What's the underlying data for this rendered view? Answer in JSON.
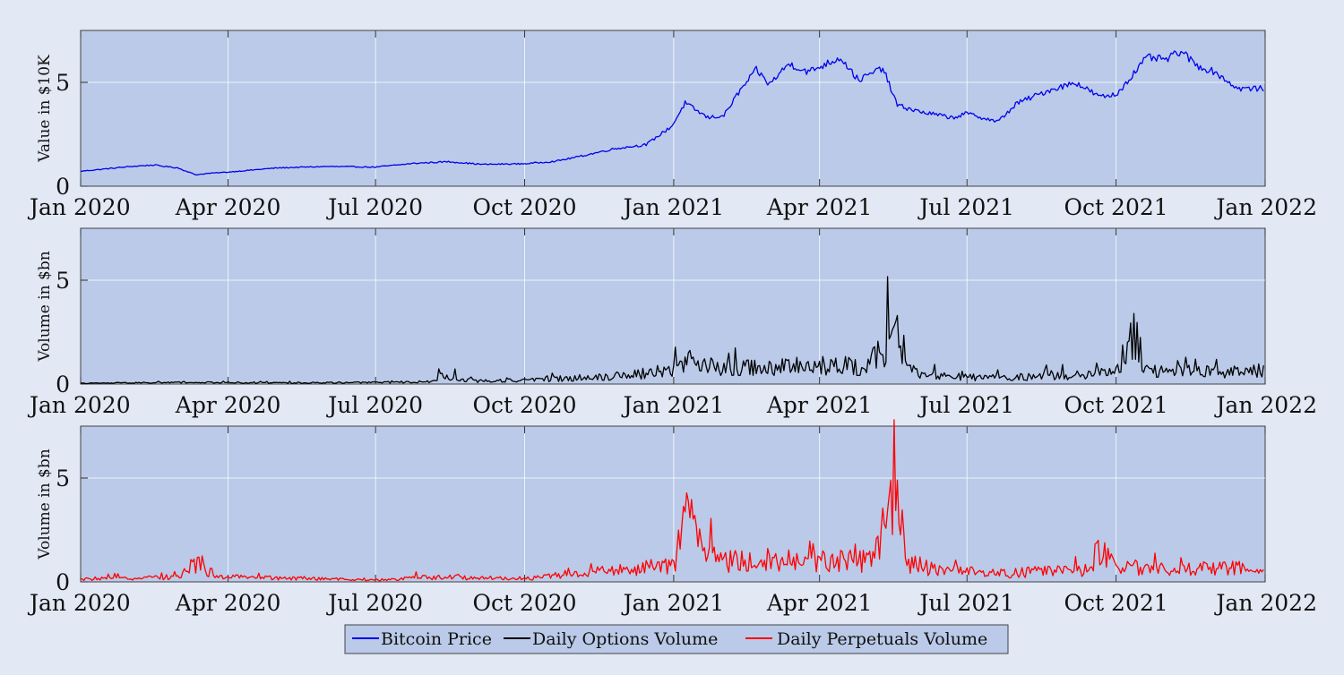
{
  "chart_data": [
    {
      "type": "line",
      "ylabel": "Value in $10K",
      "ylim": [
        0,
        7.5
      ],
      "yticks": [
        "0",
        "5"
      ],
      "grid": true,
      "x_ticks": [
        "Jan 2020",
        "Apr 2020",
        "Jul 2020",
        "Oct 2020",
        "Jan 2021",
        "Apr 2021",
        "Jul 2021",
        "Oct 2021",
        "Jan 2022"
      ],
      "series": [
        {
          "name": "Bitcoin Price",
          "color": "#0000ee",
          "noise": 0.06,
          "x": [
            "2020-01-01",
            "2020-02-01",
            "2020-02-15",
            "2020-03-01",
            "2020-03-12",
            "2020-03-20",
            "2020-04-01",
            "2020-05-01",
            "2020-06-01",
            "2020-07-01",
            "2020-07-25",
            "2020-08-15",
            "2020-09-05",
            "2020-10-01",
            "2020-10-20",
            "2020-11-05",
            "2020-11-25",
            "2020-12-15",
            "2020-12-31",
            "2021-01-08",
            "2021-01-22",
            "2021-02-01",
            "2021-02-10",
            "2021-02-21",
            "2021-03-01",
            "2021-03-13",
            "2021-03-25",
            "2021-04-14",
            "2021-04-25",
            "2021-05-10",
            "2021-05-19",
            "2021-06-01",
            "2021-06-22",
            "2021-07-01",
            "2021-07-20",
            "2021-08-01",
            "2021-08-20",
            "2021-09-06",
            "2021-09-21",
            "2021-10-01",
            "2021-10-20",
            "2021-11-01",
            "2021-11-10",
            "2021-11-20",
            "2021-12-01",
            "2021-12-15",
            "2021-12-31"
          ],
          "y": [
            0.72,
            0.95,
            1.02,
            0.88,
            0.55,
            0.62,
            0.68,
            0.88,
            0.95,
            0.92,
            1.1,
            1.18,
            1.05,
            1.08,
            1.2,
            1.45,
            1.8,
            2.0,
            2.9,
            4.0,
            3.3,
            3.4,
            4.5,
            5.6,
            4.9,
            5.9,
            5.5,
            6.2,
            5.1,
            5.7,
            3.9,
            3.6,
            3.3,
            3.5,
            3.1,
            4.0,
            4.6,
            5.0,
            4.3,
            4.4,
            6.2,
            6.1,
            6.5,
            5.8,
            5.5,
            4.7,
            4.7
          ]
        }
      ]
    },
    {
      "type": "line",
      "ylabel": "Volume in $bn",
      "ylim": [
        0,
        7.5
      ],
      "yticks": [
        "0",
        "5"
      ],
      "grid": true,
      "x_ticks": [
        "Jan 2020",
        "Apr 2020",
        "Jul 2020",
        "Oct 2020",
        "Jan 2021",
        "Apr 2021",
        "Jul 2021",
        "Oct 2021",
        "Jan 2022"
      ],
      "series": [
        {
          "name": "Daily Options Volume",
          "color": "#000000",
          "noise": 0.55,
          "x": [
            "2020-01-01",
            "2020-03-01",
            "2020-05-01",
            "2020-07-01",
            "2020-08-05",
            "2020-08-10",
            "2020-09-01",
            "2020-10-01",
            "2020-11-01",
            "2020-12-01",
            "2021-01-01",
            "2021-01-10",
            "2021-02-01",
            "2021-03-01",
            "2021-04-01",
            "2021-05-01",
            "2021-05-19",
            "2021-05-25",
            "2021-06-15",
            "2021-07-15",
            "2021-08-15",
            "2021-09-15",
            "2021-10-01",
            "2021-10-12",
            "2021-10-20",
            "2021-11-15",
            "2021-12-15",
            "2021-12-31"
          ],
          "y": [
            0.05,
            0.1,
            0.08,
            0.1,
            0.15,
            0.5,
            0.2,
            0.25,
            0.4,
            0.55,
            0.9,
            1.5,
            1.0,
            1.1,
            1.1,
            1.2,
            3.3,
            0.9,
            0.5,
            0.4,
            0.5,
            0.6,
            0.8,
            3.4,
            0.9,
            0.9,
            0.8,
            0.9
          ]
        }
      ]
    },
    {
      "type": "line",
      "ylabel": "Volume in $bn",
      "ylim": [
        0,
        7.5
      ],
      "yticks": [
        "0",
        "5"
      ],
      "grid": true,
      "x_ticks": [
        "Jan 2020",
        "Apr 2020",
        "Jul 2020",
        "Oct 2020",
        "Jan 2021",
        "Apr 2021",
        "Jul 2021",
        "Oct 2021",
        "Jan 2022"
      ],
      "series": [
        {
          "name": "Daily Perpetuals Volume",
          "color": "#ff0000",
          "noise": 0.65,
          "x": [
            "2020-01-01",
            "2020-03-01",
            "2020-03-14",
            "2020-03-25",
            "2020-05-01",
            "2020-07-01",
            "2020-08-01",
            "2020-10-01",
            "2020-11-01",
            "2020-12-01",
            "2021-01-01",
            "2021-01-10",
            "2021-01-25",
            "2021-02-01",
            "2021-03-01",
            "2021-04-01",
            "2021-05-01",
            "2021-05-19",
            "2021-05-26",
            "2021-06-15",
            "2021-07-15",
            "2021-08-15",
            "2021-09-15",
            "2021-09-20",
            "2021-10-01",
            "2021-11-15",
            "2021-12-15",
            "2021-12-31"
          ],
          "y": [
            0.15,
            0.3,
            1.2,
            0.3,
            0.25,
            0.1,
            0.3,
            0.2,
            0.5,
            0.7,
            1.0,
            3.9,
            1.4,
            1.2,
            1.3,
            1.2,
            1.3,
            4.9,
            1.1,
            0.7,
            0.5,
            0.6,
            0.7,
            2.0,
            0.8,
            0.9,
            0.8,
            0.6
          ]
        }
      ]
    }
  ],
  "legend": {
    "position": "bottom-center",
    "entries": [
      "Bitcoin Price",
      "Daily Options Volume",
      "Daily Perpetuals Volume"
    ]
  }
}
